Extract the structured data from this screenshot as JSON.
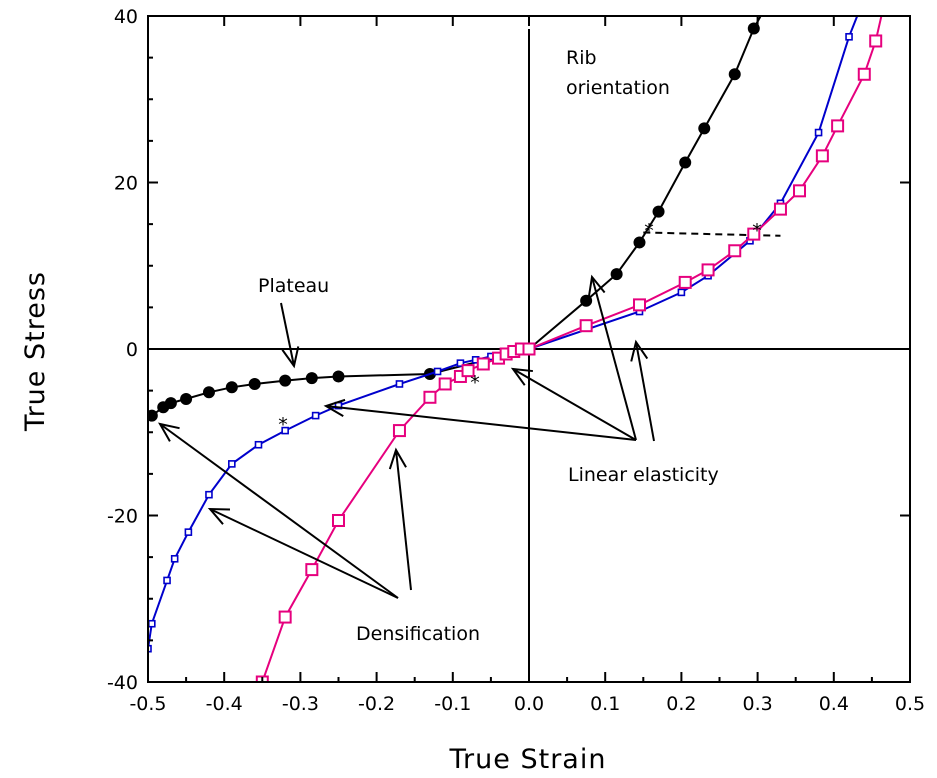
{
  "chart_data": {
    "type": "line",
    "title": "",
    "xlabel": "True Strain",
    "ylabel": "True Stress",
    "xlim": [
      -0.5,
      0.5
    ],
    "ylim": [
      -40,
      40
    ],
    "xticks": [
      "-0.5",
      "-0.4",
      "-0.3",
      "-0.2",
      "-0.1",
      "0.0",
      "0.1",
      "0.2",
      "0.3",
      "0.4",
      "0.5"
    ],
    "yticks": [
      "-40",
      "-20",
      "0",
      "20",
      "40"
    ],
    "grid": false,
    "legend": "none",
    "series": [
      {
        "color": "#000000",
        "marker": "filled-circle",
        "points": [
          [
            -0.495,
            -8.0
          ],
          [
            -0.48,
            -7.0
          ],
          [
            -0.47,
            -6.5
          ],
          [
            -0.45,
            -6.0
          ],
          [
            -0.42,
            -5.2
          ],
          [
            -0.39,
            -4.6
          ],
          [
            -0.36,
            -4.2
          ],
          [
            -0.32,
            -3.8
          ],
          [
            -0.285,
            -3.5
          ],
          [
            -0.25,
            -3.3
          ],
          [
            -0.13,
            -3.0
          ],
          [
            0.0,
            0.0
          ],
          [
            0.075,
            5.8
          ],
          [
            0.115,
            9.0
          ],
          [
            0.145,
            12.8
          ],
          [
            0.17,
            16.5
          ],
          [
            0.205,
            22.4
          ],
          [
            0.23,
            26.5
          ],
          [
            0.27,
            33.0
          ],
          [
            0.295,
            38.5
          ],
          [
            0.31,
            41.0
          ]
        ]
      },
      {
        "color": "#0000cc",
        "marker": "open-square-small",
        "points": [
          [
            -0.5,
            -36.0
          ],
          [
            -0.495,
            -33.0
          ],
          [
            -0.475,
            -27.8
          ],
          [
            -0.465,
            -25.2
          ],
          [
            -0.447,
            -22.0
          ],
          [
            -0.42,
            -17.5
          ],
          [
            -0.39,
            -13.8
          ],
          [
            -0.355,
            -11.5
          ],
          [
            -0.32,
            -9.8
          ],
          [
            -0.28,
            -8.0
          ],
          [
            -0.25,
            -6.8
          ],
          [
            -0.17,
            -4.2
          ],
          [
            -0.12,
            -2.7
          ],
          [
            -0.09,
            -1.7
          ],
          [
            -0.07,
            -1.3
          ],
          [
            -0.05,
            -0.9
          ],
          [
            -0.03,
            -0.5
          ],
          [
            -0.01,
            -0.2
          ],
          [
            0.0,
            0.0
          ],
          [
            0.145,
            4.5
          ],
          [
            0.2,
            6.8
          ],
          [
            0.235,
            8.8
          ],
          [
            0.29,
            13.0
          ],
          [
            0.33,
            17.5
          ],
          [
            0.38,
            26.0
          ],
          [
            0.42,
            37.5
          ],
          [
            0.435,
            41.0
          ]
        ]
      },
      {
        "color": "#e6007e",
        "marker": "open-square",
        "points": [
          [
            -0.35,
            -40.0
          ],
          [
            -0.32,
            -32.2
          ],
          [
            -0.285,
            -26.5
          ],
          [
            -0.25,
            -20.6
          ],
          [
            -0.17,
            -9.8
          ],
          [
            -0.13,
            -5.8
          ],
          [
            -0.11,
            -4.2
          ],
          [
            -0.09,
            -3.3
          ],
          [
            -0.08,
            -2.6
          ],
          [
            -0.06,
            -1.8
          ],
          [
            -0.04,
            -1.1
          ],
          [
            -0.03,
            -0.6
          ],
          [
            -0.02,
            -0.3
          ],
          [
            -0.01,
            0.0
          ],
          [
            0.0,
            0.0
          ],
          [
            0.075,
            2.8
          ],
          [
            0.145,
            5.3
          ],
          [
            0.205,
            8.0
          ],
          [
            0.235,
            9.5
          ],
          [
            0.27,
            11.8
          ],
          [
            0.295,
            13.8
          ],
          [
            0.33,
            16.8
          ],
          [
            0.355,
            19.0
          ],
          [
            0.385,
            23.2
          ],
          [
            0.405,
            26.8
          ],
          [
            0.44,
            33.0
          ],
          [
            0.455,
            37.0
          ],
          [
            0.465,
            41.0
          ]
        ]
      }
    ],
    "dashed_line": {
      "x1": 0.15,
      "y1": 14.0,
      "x2": 0.33,
      "y2": 13.6
    },
    "annotations": {
      "rib": [
        "Rib",
        "orientation"
      ],
      "plateau": "Plateau",
      "linear": "Linear elasticity",
      "densification": "Densification"
    }
  }
}
